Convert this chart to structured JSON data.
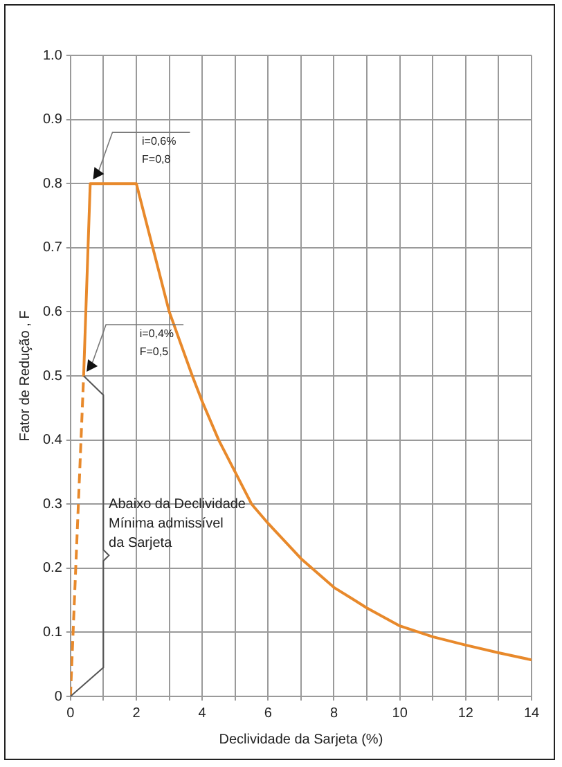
{
  "chart_data": {
    "type": "line",
    "xlabel": "Declividade da Sarjeta (%)",
    "ylabel": "Fator de Redução , F",
    "xlim": [
      0,
      14
    ],
    "ylim": [
      0,
      1
    ],
    "xticks": [
      0,
      {
        "value": 1,
        "label": null
      },
      2,
      {
        "value": 3,
        "label": null
      },
      4,
      {
        "value": 5,
        "label": null
      },
      6,
      {
        "value": 7,
        "label": null
      },
      8,
      {
        "value": 9,
        "label": null
      },
      10,
      {
        "value": 11,
        "label": null
      },
      12,
      {
        "value": 13,
        "label": null
      },
      14
    ],
    "yticks": [
      0,
      0.1,
      0.2,
      0.3,
      0.4,
      0.5,
      0.6,
      0.7,
      0.8,
      0.9,
      {
        "value": 1,
        "label": "1.0"
      }
    ],
    "grid": true,
    "legend": false,
    "marker": "none",
    "series": [
      {
        "color": "#e8892b",
        "line_style": "dashed",
        "x": [
          0,
          0.4
        ],
        "values": [
          0,
          0.5
        ]
      },
      {
        "color": "#e8892b",
        "line_style": "solid",
        "x": [
          0.4,
          0.6,
          2,
          2.5,
          3,
          3.7,
          4,
          4.5,
          5,
          5.5,
          6,
          7,
          8,
          9,
          10,
          11,
          12,
          13,
          14
        ],
        "values": [
          0.5,
          0.8,
          0.8,
          0.7,
          0.6,
          0.5,
          0.46,
          0.4,
          0.35,
          0.3,
          0.27,
          0.215,
          0.17,
          0.138,
          0.11,
          0.093,
          0.08,
          0.068,
          0.057
        ]
      }
    ],
    "annotations": [
      "i=0,6%\nF=0,8",
      "i=0,4%\nF=0,5",
      "Abaixo da Declividade\nMínima admissível\nda Sarjeta"
    ]
  }
}
